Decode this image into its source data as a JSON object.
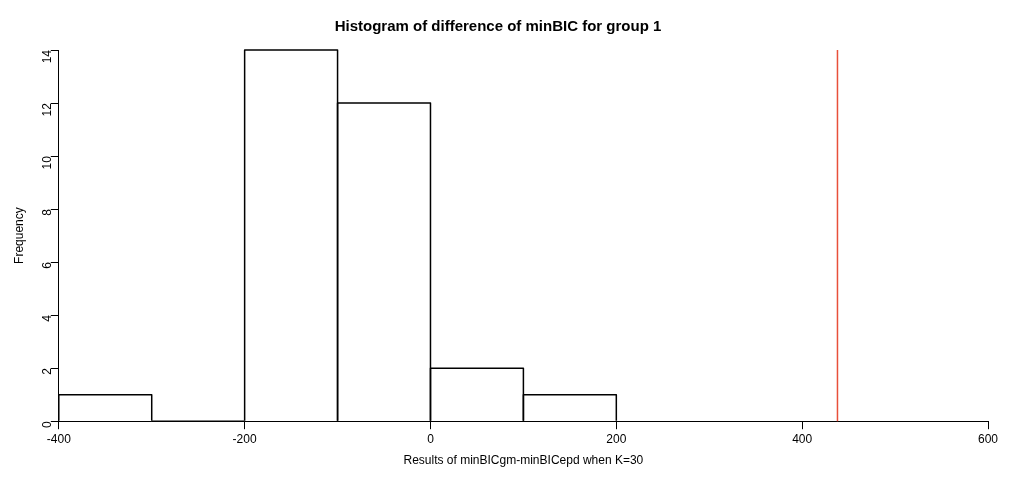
{
  "chart_data": {
    "type": "histogram",
    "title": "Histogram of difference of minBIC for group 1",
    "xlabel": "Results of minBICgm-minBICepd when K=30",
    "ylabel": "Frequency",
    "bins": [
      -400,
      -300,
      -200,
      -100,
      0,
      100,
      200
    ],
    "values": [
      1,
      0,
      14,
      12,
      2,
      1
    ],
    "color": "#ffffff",
    "xlim": [
      -400,
      600
    ],
    "xticks": [
      -400,
      -200,
      0,
      200,
      400,
      600
    ],
    "ylim": [
      0,
      14
    ],
    "yticks": [
      0,
      2,
      4,
      6,
      8,
      10,
      12,
      14
    ],
    "grid": false,
    "legend": false,
    "ref_lines": [
      {
        "axis": "x",
        "value": 438,
        "color": "#e8503a"
      }
    ]
  }
}
